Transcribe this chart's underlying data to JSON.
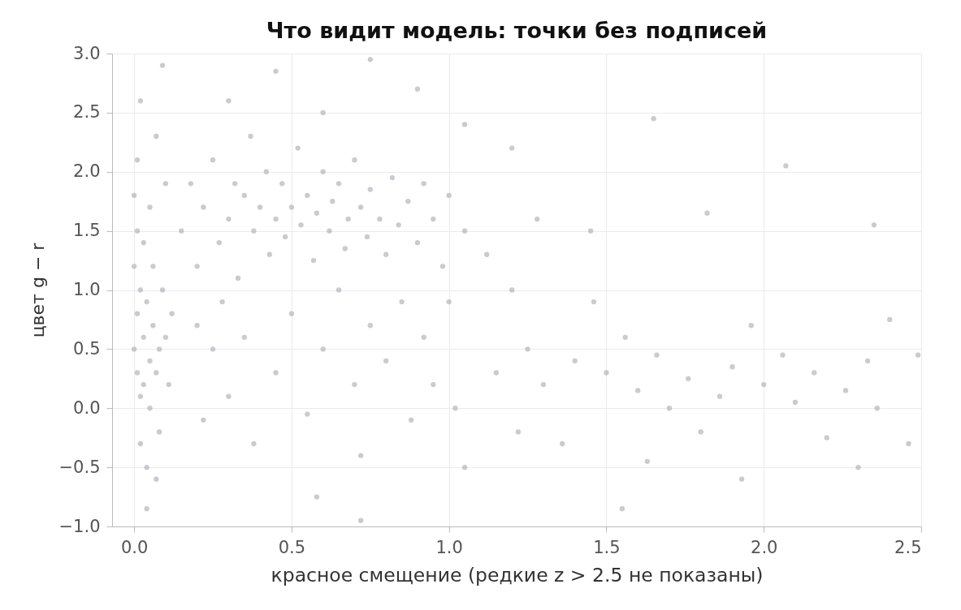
{
  "chart_data": {
    "type": "scatter",
    "title": "Что видит модель: точки без подписей",
    "xlabel": "красное смещение (редкие z > 2.5 не показаны)",
    "ylabel": "цвет g − r",
    "xlim": [
      -0.07,
      2.5
    ],
    "ylim": [
      -1.0,
      3.0
    ],
    "xticks": [
      {
        "value": 0,
        "label": "0.0"
      },
      0.5,
      {
        "value": 1,
        "label": "1.0"
      },
      1.5,
      {
        "value": 2,
        "label": "2.0"
      },
      2.5
    ],
    "yticks": [
      {
        "value": -1,
        "label": "−1.0"
      },
      {
        "value": -0.5,
        "label": "−0.5"
      },
      {
        "value": 0,
        "label": "0.0"
      },
      0.5,
      {
        "value": 1,
        "label": "1.0"
      },
      1.5,
      {
        "value": 2,
        "label": "2.0"
      },
      2.5,
      {
        "value": 3,
        "label": "3.0"
      }
    ],
    "grid": true,
    "marker": "circle",
    "series": [
      {
        "color": "#b4b4bc",
        "x": [
          0.0,
          0.0,
          0.0,
          0.01,
          0.01,
          0.01,
          0.01,
          0.02,
          0.02,
          0.02,
          0.03,
          0.03,
          0.03,
          0.04,
          0.04,
          0.05,
          0.05,
          0.05,
          0.06,
          0.06,
          0.07,
          0.07,
          0.08,
          0.08,
          0.09,
          0.1,
          0.1,
          0.11,
          0.12,
          0.04,
          0.07,
          0.02,
          0.09,
          0.15,
          0.18,
          0.2,
          0.22,
          0.25,
          0.27,
          0.3,
          0.32,
          0.33,
          0.35,
          0.37,
          0.38,
          0.4,
          0.42,
          0.43,
          0.45,
          0.47,
          0.48,
          0.5,
          0.52,
          0.53,
          0.55,
          0.57,
          0.58,
          0.6,
          0.62,
          0.63,
          0.65,
          0.67,
          0.68,
          0.7,
          0.72,
          0.74,
          0.75,
          0.78,
          0.8,
          0.82,
          0.84,
          0.87,
          0.9,
          0.92,
          0.95,
          0.98,
          1.0,
          1.05,
          0.2,
          0.22,
          0.25,
          0.28,
          0.3,
          0.35,
          0.38,
          0.45,
          0.5,
          0.55,
          0.58,
          0.6,
          0.65,
          0.7,
          0.72,
          0.75,
          0.8,
          0.85,
          0.88,
          0.92,
          0.95,
          1.0,
          1.02,
          1.05,
          1.12,
          1.15,
          1.2,
          1.22,
          1.25,
          1.28,
          0.3,
          0.45,
          0.6,
          0.75,
          0.9,
          1.05,
          1.2,
          0.72,
          1.3,
          1.36,
          1.4,
          1.46,
          1.5,
          1.56,
          1.6,
          1.63,
          1.66,
          1.7,
          1.76,
          1.8,
          1.86,
          1.9,
          1.93,
          1.96,
          2.0,
          2.06,
          2.1,
          2.16,
          2.2,
          2.26,
          2.3,
          2.33,
          2.36,
          2.4,
          2.46,
          2.49,
          1.45,
          1.65,
          1.82,
          2.07,
          2.35,
          1.55
        ],
        "values": [
          0.5,
          1.2,
          1.8,
          0.8,
          0.3,
          2.1,
          1.5,
          0.1,
          1.0,
          -0.3,
          0.6,
          1.4,
          0.2,
          0.9,
          -0.5,
          0.4,
          1.7,
          0.0,
          0.7,
          1.2,
          0.3,
          2.3,
          0.5,
          -0.2,
          1.0,
          0.6,
          1.9,
          0.2,
          0.8,
          -0.85,
          -0.6,
          2.6,
          2.9,
          1.5,
          1.9,
          1.2,
          1.7,
          2.1,
          1.4,
          1.6,
          1.9,
          1.1,
          1.8,
          2.3,
          1.5,
          1.7,
          2.0,
          1.3,
          1.6,
          1.9,
          1.45,
          1.7,
          2.2,
          1.55,
          1.8,
          1.25,
          1.65,
          2.0,
          1.5,
          1.75,
          1.9,
          1.35,
          1.6,
          2.1,
          1.7,
          1.45,
          1.85,
          1.6,
          1.3,
          1.95,
          1.55,
          1.75,
          1.4,
          1.9,
          1.6,
          1.2,
          1.8,
          1.5,
          0.7,
          -0.1,
          0.5,
          0.9,
          0.1,
          0.6,
          -0.3,
          0.3,
          0.8,
          -0.05,
          -0.75,
          0.5,
          1.0,
          0.2,
          -0.4,
          0.7,
          0.4,
          0.9,
          -0.1,
          0.6,
          0.2,
          0.9,
          0.0,
          -0.5,
          1.3,
          0.3,
          1.0,
          -0.2,
          0.5,
          1.6,
          2.6,
          2.85,
          2.5,
          2.95,
          2.7,
          2.4,
          2.2,
          -0.95,
          0.2,
          -0.3,
          0.4,
          0.9,
          0.3,
          0.6,
          0.15,
          -0.45,
          0.45,
          0.0,
          0.25,
          -0.2,
          0.1,
          0.35,
          -0.6,
          0.7,
          0.2,
          0.45,
          0.05,
          0.3,
          -0.25,
          0.15,
          -0.5,
          0.4,
          0.0,
          0.75,
          -0.3,
          0.45,
          1.5,
          2.45,
          1.65,
          2.05,
          1.55,
          -0.85
        ]
      }
    ]
  }
}
